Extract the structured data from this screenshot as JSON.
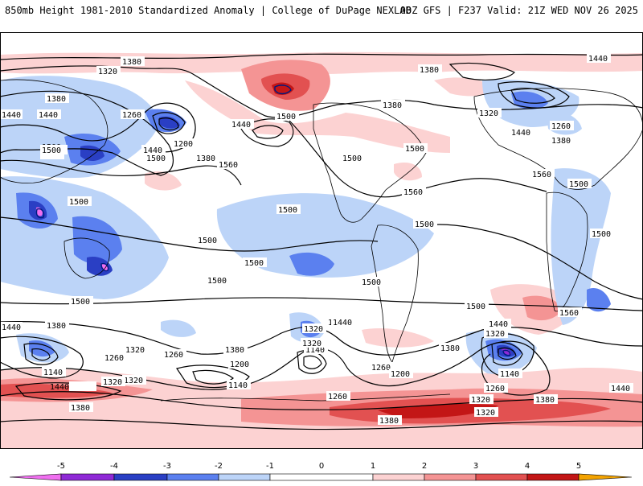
{
  "header": {
    "title": "850mb Height 1981-2010 Standardized Anomaly | College of DuPage NEXLAB",
    "run": "00Z GFS | F237 Valid: 21Z WED NOV 26 2025"
  },
  "colors": {
    "anom_minus5": "#f06ff0",
    "anom_minus4": "#8f2ad6",
    "anom_minus3": "#2a3fc4",
    "anom_minus2": "#5b80ef",
    "anom_minus1": "#bcd4f8",
    "anom_zero": "#ffffff",
    "anom_plus1": "#fcd2d2",
    "anom_plus2": "#f49494",
    "anom_plus3": "#e25151",
    "anom_plus4": "#c31616",
    "anom_plus5": "#f3a300"
  },
  "colorbar": {
    "ticks": [
      "-5",
      "-4",
      "-3",
      "-2",
      "-1",
      "0",
      "1",
      "2",
      "3",
      "4",
      "5"
    ]
  },
  "contour_labels": [
    {
      "id": "c1",
      "value": "1380"
    },
    {
      "id": "c2",
      "value": "1320"
    },
    {
      "id": "c3",
      "value": "1380"
    },
    {
      "id": "c4",
      "value": "1440"
    },
    {
      "id": "c5",
      "value": "1260"
    },
    {
      "id": "c6",
      "value": "1200"
    },
    {
      "id": "c7",
      "value": "1500"
    },
    {
      "id": "c8",
      "value": "1440"
    },
    {
      "id": "c9",
      "value": "1500"
    },
    {
      "id": "c10",
      "value": "1380"
    },
    {
      "id": "c11",
      "value": "1560"
    },
    {
      "id": "c12",
      "value": "1440"
    },
    {
      "id": "c13",
      "value": "1500"
    },
    {
      "id": "c14",
      "value": "1500"
    },
    {
      "id": "c15",
      "value": "1500"
    },
    {
      "id": "c16",
      "value": "1380"
    },
    {
      "id": "c17",
      "value": "1380"
    },
    {
      "id": "c18",
      "value": "1320"
    },
    {
      "id": "c19",
      "value": "1440"
    },
    {
      "id": "c20",
      "value": "1260"
    },
    {
      "id": "c21",
      "value": "1380"
    },
    {
      "id": "c22",
      "value": "1500"
    },
    {
      "id": "c23",
      "value": "1560"
    },
    {
      "id": "c24",
      "value": "1560"
    },
    {
      "id": "c25",
      "value": "1500"
    },
    {
      "id": "c26",
      "value": "1500"
    },
    {
      "id": "c27",
      "value": "1440"
    },
    {
      "id": "c28",
      "value": "1500"
    },
    {
      "id": "c29",
      "value": "1500"
    },
    {
      "id": "c30",
      "value": "1500"
    },
    {
      "id": "c31",
      "value": "1500"
    },
    {
      "id": "c32",
      "value": "1500"
    },
    {
      "id": "c33",
      "value": "1500"
    },
    {
      "id": "c34",
      "value": "1500"
    },
    {
      "id": "c35",
      "value": "1560"
    },
    {
      "id": "c36",
      "value": "1500"
    },
    {
      "id": "c37",
      "value": "1500"
    },
    {
      "id": "c38",
      "value": "1440"
    },
    {
      "id": "c39",
      "value": "1380"
    },
    {
      "id": "c40",
      "value": "1440"
    },
    {
      "id": "c41",
      "value": "1320"
    },
    {
      "id": "c42",
      "value": "1260"
    },
    {
      "id": "c43",
      "value": "1140"
    },
    {
      "id": "c44",
      "value": "1320"
    },
    {
      "id": "c45",
      "value": "1440"
    },
    {
      "id": "c46",
      "value": "1380"
    },
    {
      "id": "c47",
      "value": "1320"
    },
    {
      "id": "c48",
      "value": "1380"
    },
    {
      "id": "c49",
      "value": "1440"
    },
    {
      "id": "c50",
      "value": "1380"
    },
    {
      "id": "c51",
      "value": "1260"
    },
    {
      "id": "c52",
      "value": "1200"
    },
    {
      "id": "c53",
      "value": "1140"
    },
    {
      "id": "c54",
      "value": "1320"
    },
    {
      "id": "c55",
      "value": "1140"
    },
    {
      "id": "c56",
      "value": "1260"
    },
    {
      "id": "c57",
      "value": "1200"
    },
    {
      "id": "c58",
      "value": "1380"
    },
    {
      "id": "c59",
      "value": "1440"
    },
    {
      "id": "c60",
      "value": "1320"
    },
    {
      "id": "c61",
      "value": "1140"
    },
    {
      "id": "c62",
      "value": "1260"
    },
    {
      "id": "c63",
      "value": "1320"
    },
    {
      "id": "c64",
      "value": "1380"
    },
    {
      "id": "c65",
      "value": "1320"
    },
    {
      "id": "c66",
      "value": "1440"
    },
    {
      "id": "c67",
      "value": "1260"
    },
    {
      "id": "c68",
      "value": "1320"
    },
    {
      "id": "c69",
      "value": "1380"
    },
    {
      "id": "c70",
      "value": "1380"
    },
    {
      "id": "c71",
      "value": "1440"
    },
    {
      "id": "c72",
      "value": "1500"
    }
  ]
}
